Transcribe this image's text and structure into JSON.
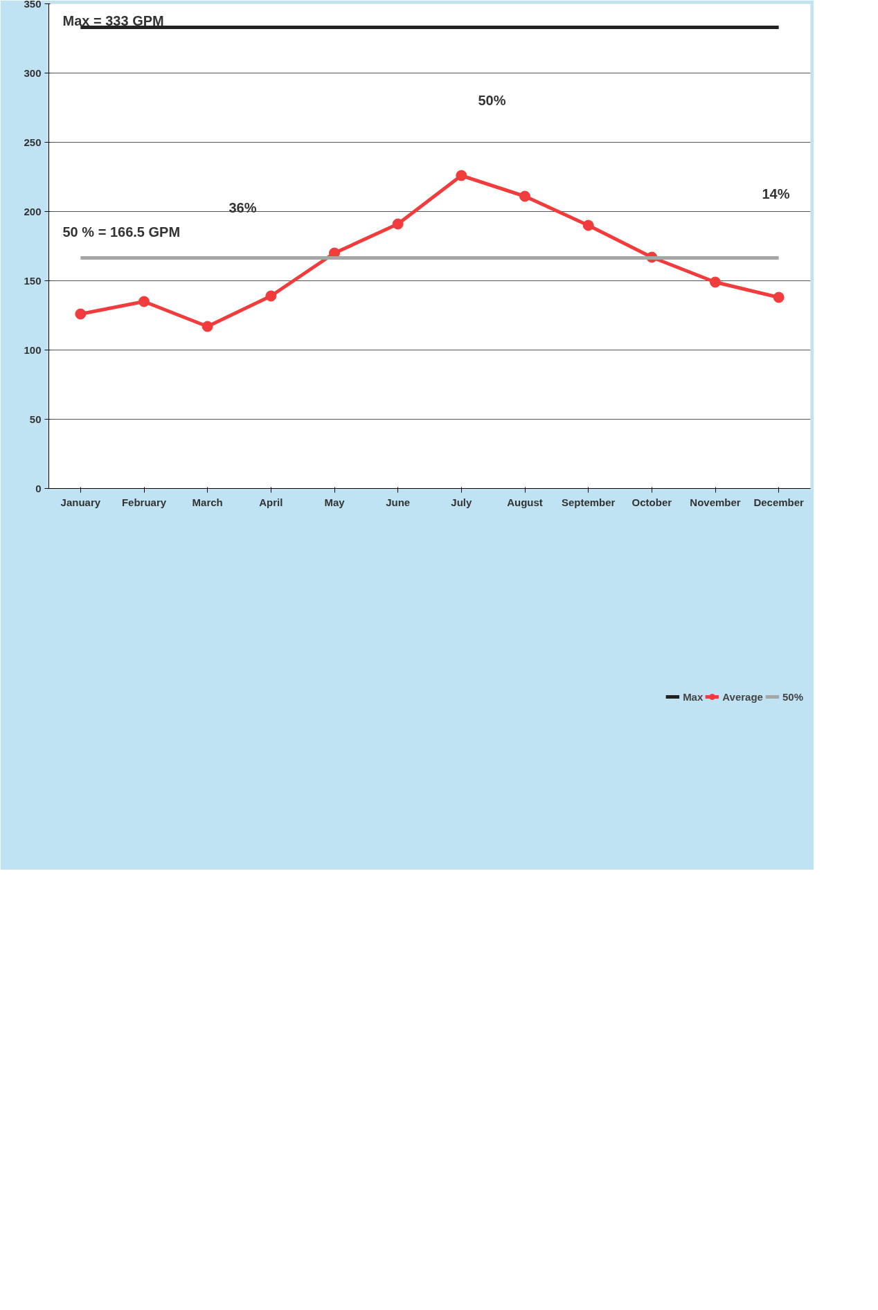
{
  "chart_data": {
    "type": "line",
    "categories": [
      "January",
      "February",
      "March",
      "April",
      "May",
      "June",
      "July",
      "August",
      "September",
      "October",
      "November",
      "December"
    ],
    "series": [
      {
        "name": "Max",
        "color": "#222222",
        "marker": "none",
        "values": [
          333,
          333,
          333,
          333,
          333,
          333,
          333,
          333,
          333,
          333,
          333,
          333
        ]
      },
      {
        "name": "Average",
        "color": "#f03c3c",
        "marker": "circle",
        "values": [
          126,
          135,
          117,
          139,
          170,
          191,
          226,
          211,
          190,
          167,
          149,
          138
        ]
      },
      {
        "name": "50%",
        "color": "#a6a6a6",
        "marker": "none",
        "values": [
          166.5,
          166.5,
          166.5,
          166.5,
          166.5,
          166.5,
          166.5,
          166.5,
          166.5,
          166.5,
          166.5,
          166.5
        ]
      }
    ],
    "ylim": [
      0,
      350
    ],
    "yticks": [
      0,
      50,
      100,
      150,
      200,
      250,
      300,
      350
    ],
    "grid": "y",
    "legend": "bottom",
    "annotations": [
      "Max = 333 GPM",
      "50 % = 166.5 GPM",
      "36%",
      "50%",
      "14%"
    ]
  }
}
